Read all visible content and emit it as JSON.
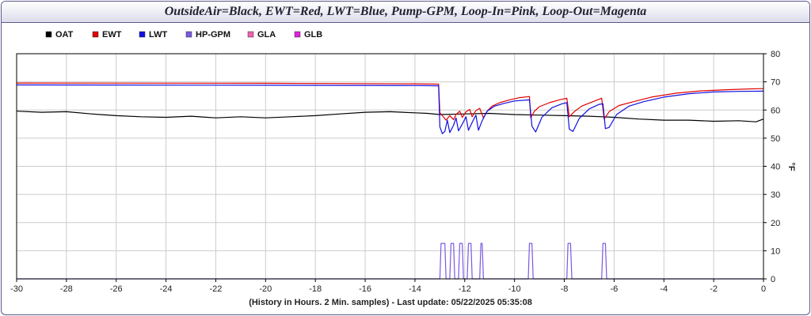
{
  "title": "OutsideAir=Black, EWT=Red, LWT=Blue, Pump-GPM, Loop-In=Pink, Loop-Out=Magenta",
  "footer": "(History in Hours. 2 Min. samples) - Last update: 05/22/2025 05:35:08",
  "chart_data": {
    "type": "line",
    "title": "OutsideAir=Black, EWT=Red, LWT=Blue, Pump-GPM, Loop-In=Pink, Loop-Out=Magenta",
    "xlabel": "(History in Hours. 2 Min. samples) - Last update: 05/22/2025 05:35:08",
    "ylabel": "°F",
    "xlim": [
      -30,
      0
    ],
    "ylim": [
      0,
      80
    ],
    "xticks": [
      -30,
      -28,
      -26,
      -24,
      -22,
      -20,
      -18,
      -16,
      -14,
      -12,
      -10,
      -8,
      -6,
      -4,
      -2,
      0
    ],
    "yticks": [
      0,
      10,
      20,
      30,
      40,
      50,
      60,
      70,
      80
    ],
    "grid": true,
    "legend_position": "top-left",
    "series": [
      {
        "name": "OAT",
        "color": "#000000",
        "points": [
          [
            -30,
            59.6
          ],
          [
            -29,
            59.2
          ],
          [
            -28,
            59.4
          ],
          [
            -27,
            58.6
          ],
          [
            -26,
            58.0
          ],
          [
            -25,
            57.6
          ],
          [
            -24,
            57.4
          ],
          [
            -23,
            57.8
          ],
          [
            -22,
            57.2
          ],
          [
            -21,
            57.6
          ],
          [
            -20,
            57.2
          ],
          [
            -19,
            57.6
          ],
          [
            -18,
            58.0
          ],
          [
            -17,
            58.6
          ],
          [
            -16,
            59.2
          ],
          [
            -15,
            59.4
          ],
          [
            -14,
            59.0
          ],
          [
            -13.5,
            58.8
          ],
          [
            -13,
            58.4
          ],
          [
            -12,
            58.6
          ],
          [
            -11,
            58.8
          ],
          [
            -10,
            58.4
          ],
          [
            -9,
            58.2
          ],
          [
            -8,
            58.0
          ],
          [
            -7,
            57.8
          ],
          [
            -6,
            57.4
          ],
          [
            -5,
            56.8
          ],
          [
            -4,
            56.4
          ],
          [
            -3,
            56.4
          ],
          [
            -2,
            56.0
          ],
          [
            -1,
            56.2
          ],
          [
            -0.3,
            55.8
          ],
          [
            0,
            56.8
          ]
        ]
      },
      {
        "name": "EWT",
        "color": "#e00000",
        "points": [
          [
            -30,
            69.6
          ],
          [
            -20,
            69.5
          ],
          [
            -14,
            69.3
          ],
          [
            -13.05,
            69.2
          ],
          [
            -13.0,
            59.0
          ],
          [
            -12.9,
            58.0
          ],
          [
            -12.75,
            56.4
          ],
          [
            -12.6,
            58.0
          ],
          [
            -12.45,
            56.6
          ],
          [
            -12.35,
            58.4
          ],
          [
            -12.2,
            59.6
          ],
          [
            -12.1,
            57.4
          ],
          [
            -11.95,
            59.4
          ],
          [
            -11.8,
            60.2
          ],
          [
            -11.7,
            57.6
          ],
          [
            -11.55,
            59.8
          ],
          [
            -11.4,
            60.6
          ],
          [
            -11.25,
            57.2
          ],
          [
            -11.1,
            59.6
          ],
          [
            -10.9,
            61.4
          ],
          [
            -10.6,
            62.6
          ],
          [
            -10.2,
            63.6
          ],
          [
            -9.8,
            64.4
          ],
          [
            -9.4,
            64.8
          ],
          [
            -9.35,
            57.2
          ],
          [
            -9.2,
            59.6
          ],
          [
            -9.0,
            61.2
          ],
          [
            -8.6,
            62.6
          ],
          [
            -8.2,
            63.6
          ],
          [
            -7.9,
            64.2
          ],
          [
            -7.8,
            57.6
          ],
          [
            -7.6,
            59.4
          ],
          [
            -7.3,
            61.4
          ],
          [
            -6.9,
            62.8
          ],
          [
            -6.5,
            64.2
          ],
          [
            -6.4,
            56.8
          ],
          [
            -6.2,
            59.4
          ],
          [
            -5.8,
            61.6
          ],
          [
            -5.2,
            63.0
          ],
          [
            -4.5,
            64.6
          ],
          [
            -3.5,
            66.0
          ],
          [
            -2.5,
            66.8
          ],
          [
            -1.5,
            67.2
          ],
          [
            -0.5,
            67.5
          ],
          [
            0,
            67.6
          ]
        ]
      },
      {
        "name": "LWT",
        "color": "#1010e0",
        "points": [
          [
            -30,
            68.9
          ],
          [
            -20,
            68.8
          ],
          [
            -14,
            68.7
          ],
          [
            -13.05,
            68.6
          ],
          [
            -13.0,
            54.0
          ],
          [
            -12.9,
            51.6
          ],
          [
            -12.8,
            52.4
          ],
          [
            -12.7,
            56.4
          ],
          [
            -12.6,
            52.0
          ],
          [
            -12.45,
            54.6
          ],
          [
            -12.35,
            57.2
          ],
          [
            -12.25,
            52.6
          ],
          [
            -12.1,
            55.0
          ],
          [
            -11.95,
            57.6
          ],
          [
            -11.85,
            52.8
          ],
          [
            -11.7,
            55.6
          ],
          [
            -11.55,
            58.2
          ],
          [
            -11.45,
            52.8
          ],
          [
            -11.3,
            56.2
          ],
          [
            -11.1,
            59.6
          ],
          [
            -10.8,
            61.4
          ],
          [
            -10.4,
            62.4
          ],
          [
            -10.0,
            63.2
          ],
          [
            -9.4,
            63.6
          ],
          [
            -9.3,
            54.2
          ],
          [
            -9.15,
            52.2
          ],
          [
            -8.9,
            57.4
          ],
          [
            -8.5,
            60.8
          ],
          [
            -8.1,
            62.2
          ],
          [
            -7.9,
            62.6
          ],
          [
            -7.8,
            53.2
          ],
          [
            -7.65,
            52.4
          ],
          [
            -7.4,
            57.0
          ],
          [
            -7.0,
            60.4
          ],
          [
            -6.6,
            62.0
          ],
          [
            -6.45,
            62.2
          ],
          [
            -6.35,
            53.4
          ],
          [
            -6.2,
            53.8
          ],
          [
            -5.9,
            58.4
          ],
          [
            -5.4,
            61.4
          ],
          [
            -4.8,
            63.0
          ],
          [
            -4.0,
            64.6
          ],
          [
            -3.0,
            65.8
          ],
          [
            -2.0,
            66.4
          ],
          [
            -1.0,
            66.6
          ],
          [
            0,
            66.7
          ]
        ]
      },
      {
        "name": "HP-GPM",
        "color": "#7a5ae0",
        "points": [
          [
            -30,
            0
          ],
          [
            -13.0,
            0
          ],
          [
            -12.95,
            12.6
          ],
          [
            -12.8,
            12.6
          ],
          [
            -12.75,
            0
          ],
          [
            -12.6,
            0
          ],
          [
            -12.55,
            12.6
          ],
          [
            -12.45,
            12.6
          ],
          [
            -12.4,
            0
          ],
          [
            -12.25,
            0
          ],
          [
            -12.2,
            12.6
          ],
          [
            -12.1,
            12.6
          ],
          [
            -12.05,
            0
          ],
          [
            -11.9,
            0
          ],
          [
            -11.85,
            12.6
          ],
          [
            -11.75,
            12.6
          ],
          [
            -11.7,
            0
          ],
          [
            -11.4,
            0
          ],
          [
            -11.35,
            12.6
          ],
          [
            -11.3,
            12.6
          ],
          [
            -11.25,
            0
          ],
          [
            -9.45,
            0
          ],
          [
            -9.4,
            12.6
          ],
          [
            -9.3,
            12.6
          ],
          [
            -9.25,
            0
          ],
          [
            -7.9,
            0
          ],
          [
            -7.85,
            12.6
          ],
          [
            -7.75,
            12.6
          ],
          [
            -7.7,
            0
          ],
          [
            -6.5,
            0
          ],
          [
            -6.45,
            12.6
          ],
          [
            -6.35,
            12.6
          ],
          [
            -6.3,
            0
          ],
          [
            0,
            0
          ]
        ]
      },
      {
        "name": "GLA",
        "color": "#f060b0",
        "points": []
      },
      {
        "name": "GLB",
        "color": "#e020e0",
        "points": []
      }
    ]
  }
}
